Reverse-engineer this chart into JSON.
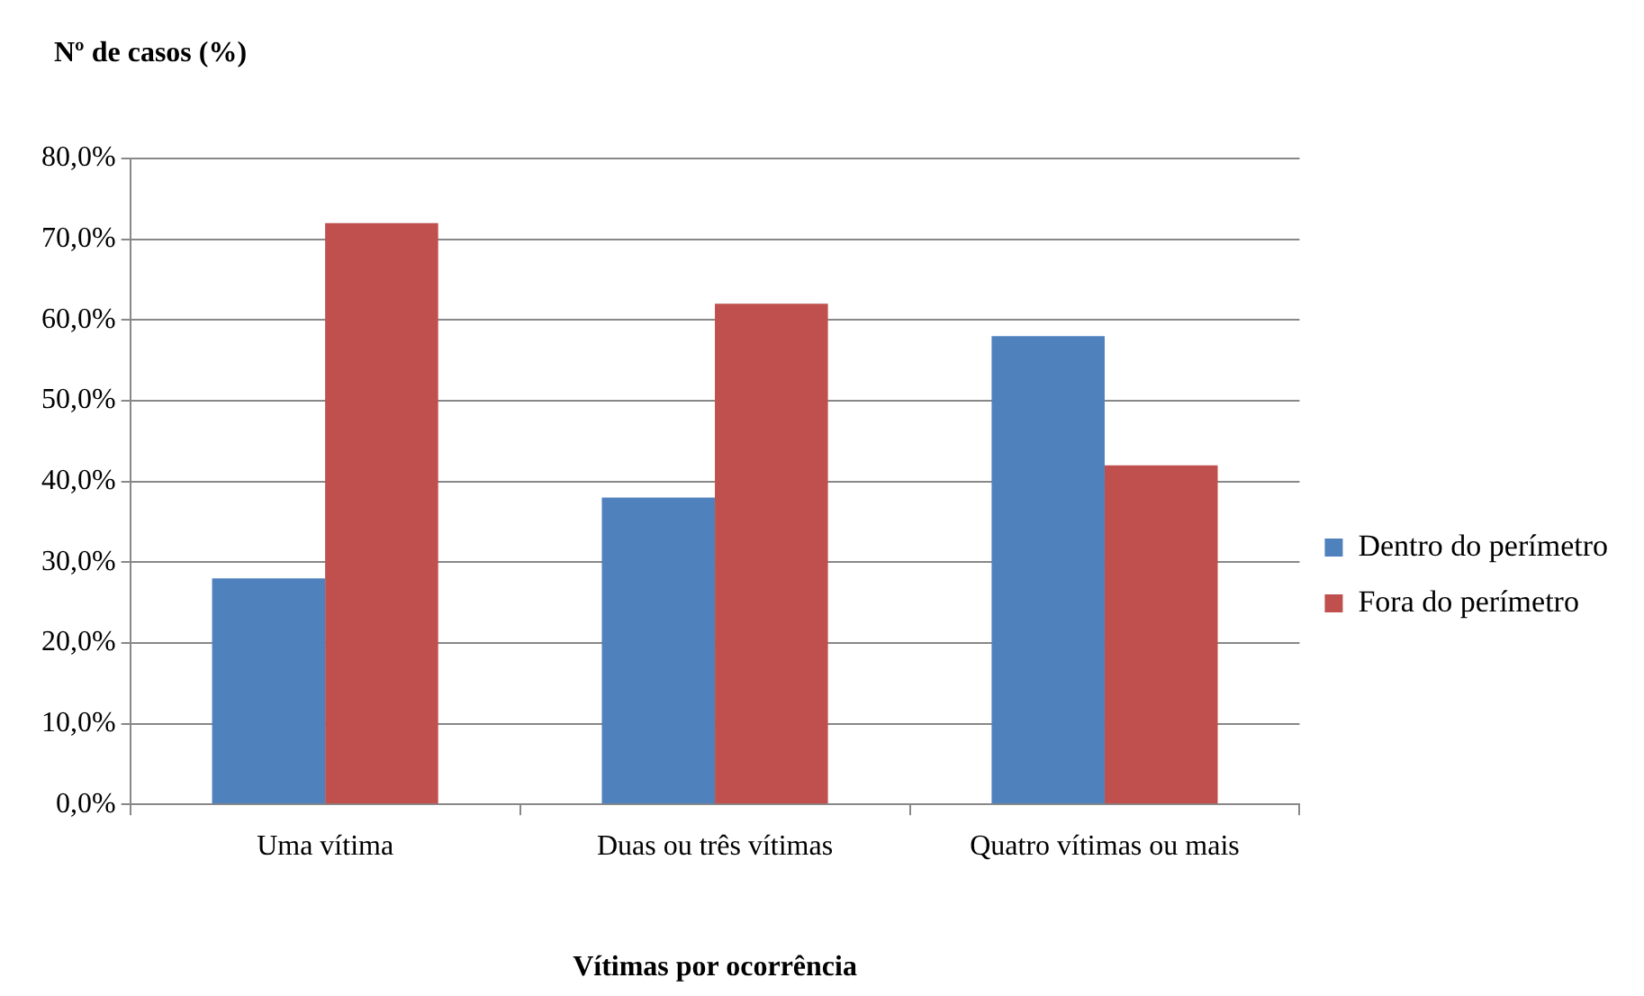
{
  "chart_data": {
    "type": "bar",
    "ylabel": "Nº de casos (%)",
    "xlabel": "Vítimas por ocorrência",
    "categories": [
      "Uma vítima",
      "Duas ou três vítimas",
      "Quatro vítimas ou mais"
    ],
    "series": [
      {
        "name": "Dentro do perímetro",
        "color": "#4f81bd",
        "values": [
          28,
          38,
          58
        ]
      },
      {
        "name": "Fora do perímetro",
        "color": "#c0504d",
        "values": [
          72,
          62,
          42
        ]
      }
    ],
    "ylim": [
      0,
      80
    ],
    "yticks": [
      {
        "value": 0,
        "label": "0,0%"
      },
      {
        "value": 10,
        "label": "10,0%"
      },
      {
        "value": 20,
        "label": "20,0%"
      },
      {
        "value": 30,
        "label": "30,0%"
      },
      {
        "value": 40,
        "label": "40,0%"
      },
      {
        "value": 50,
        "label": "50,0%"
      },
      {
        "value": 60,
        "label": "60,0%"
      },
      {
        "value": 70,
        "label": "70,0%"
      },
      {
        "value": 80,
        "label": "80,0%"
      }
    ],
    "grid": "y",
    "legend": "right"
  }
}
